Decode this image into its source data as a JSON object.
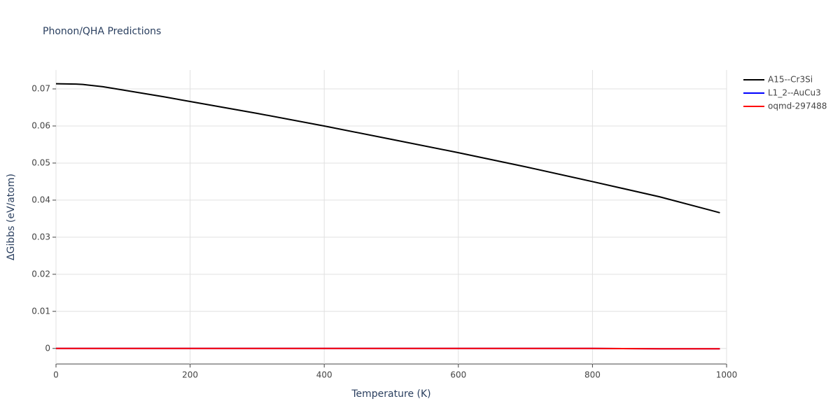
{
  "chart_data": {
    "type": "line",
    "title": "Phonon/QHA Predictions",
    "x_label": "Temperature (K)",
    "y_label": "ΔGibbs (eV/atom)",
    "x": [
      0,
      30,
      40,
      70,
      160,
      200,
      300,
      400,
      500,
      600,
      700,
      800,
      900,
      990
    ],
    "series": [
      {
        "name": "A15--Cr3Si",
        "color": "#000000",
        "values": [
          0.0714,
          0.0713,
          0.0712,
          0.0706,
          0.0679,
          0.0666,
          0.0634,
          0.06,
          0.0564,
          0.0528,
          0.049,
          0.045,
          0.0409,
          0.0366
        ]
      },
      {
        "name": "L1_2--AuCu3",
        "color": "#0000ff",
        "values": [
          0,
          0,
          0,
          0,
          0,
          0,
          0,
          0,
          0,
          0,
          0,
          0,
          -0.0001,
          -0.0001
        ]
      },
      {
        "name": "oqmd-297488",
        "color": "#ff0000",
        "values": [
          0,
          0,
          0,
          0,
          0,
          0,
          0,
          0,
          0,
          0,
          0,
          0,
          -0.0001,
          -0.0001
        ]
      }
    ],
    "xlim": [
      0,
      1000
    ],
    "xticks": [
      0,
      200,
      400,
      600,
      800,
      1000
    ],
    "ylim": [
      -0.0042,
      0.0751
    ],
    "yticks": [
      0,
      0.01,
      0.02,
      0.03,
      0.04,
      0.05,
      0.06,
      0.07
    ],
    "grid": true,
    "legend": "right"
  }
}
